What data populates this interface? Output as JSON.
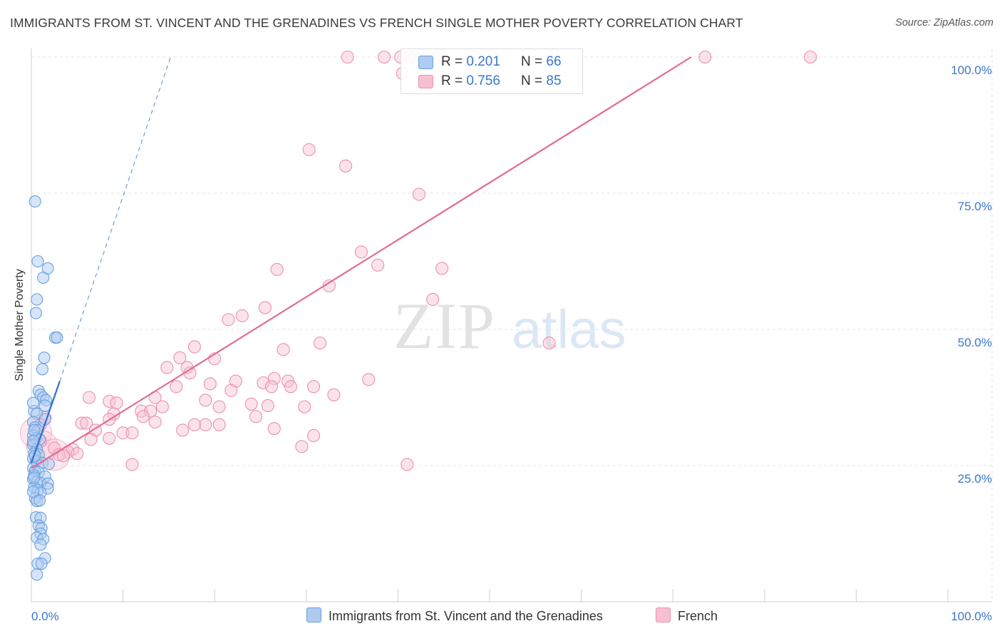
{
  "title": "IMMIGRANTS FROM ST. VINCENT AND THE GRENADINES VS FRENCH SINGLE MOTHER POVERTY CORRELATION CHART",
  "source": "Source: ZipAtlas.com",
  "watermark": {
    "part1": "ZIP",
    "part2": "atlas"
  },
  "legend_top": [
    {
      "r_label": "R = ",
      "r_value": "0.201",
      "n_label": "N = ",
      "n_value": "66"
    },
    {
      "r_label": "R = ",
      "r_value": "0.756",
      "n_label": "N = ",
      "n_value": "85"
    }
  ],
  "legend_bottom": [
    {
      "label": "Immigrants from St. Vincent and the Grenadines"
    },
    {
      "label": "French"
    }
  ],
  "colors": {
    "blue_fill": "#aecbf2",
    "blue_stroke": "#6a9fde",
    "blue_line": "#2f6fd0",
    "pink_fill": "#f7c0d2",
    "pink_stroke": "#ec8fae",
    "pink_line": "#e26a92",
    "axis_text": "#3b76c9",
    "grid": "#e3e3e3"
  },
  "chart_data": {
    "type": "scatter",
    "title": "IMMIGRANTS FROM ST. VINCENT AND THE GRENADINES VS FRENCH SINGLE MOTHER POVERTY CORRELATION CHART",
    "xlabel": "",
    "ylabel": "Single Mother Poverty",
    "xlim": [
      0,
      100
    ],
    "ylim": [
      0,
      100
    ],
    "x_tick_labels": [
      "0.0%",
      "100.0%"
    ],
    "y_ticks": [
      25,
      50,
      75,
      100
    ],
    "y_tick_labels": [
      "25.0%",
      "50.0%",
      "75.0%",
      "100.0%"
    ],
    "grid": true,
    "series": [
      {
        "name": "Immigrants from St. Vincent and the Grenadines",
        "color": "blue",
        "r": 0.201,
        "n": 66,
        "trend_solid": {
          "x": [
            0.0,
            3.1
          ],
          "y": [
            25.5,
            40.5
          ]
        },
        "trend_dashed": {
          "x": [
            3.1,
            15.2
          ],
          "y": [
            40.5,
            100
          ]
        },
        "points": [
          [
            0.4,
            73.5
          ],
          [
            0.7,
            62.5
          ],
          [
            1.3,
            59.5
          ],
          [
            1.8,
            61.2
          ],
          [
            0.6,
            55.5
          ],
          [
            0.5,
            53.0
          ],
          [
            2.6,
            48.5
          ],
          [
            2.8,
            48.5
          ],
          [
            1.4,
            44.8
          ],
          [
            1.2,
            42.7
          ],
          [
            0.8,
            38.7
          ],
          [
            1.0,
            38.0
          ],
          [
            1.3,
            37.5
          ],
          [
            1.6,
            37.0
          ],
          [
            1.5,
            36.0
          ],
          [
            0.3,
            35.0
          ],
          [
            0.6,
            34.5
          ],
          [
            0.2,
            33.0
          ],
          [
            1.5,
            33.5
          ],
          [
            0.4,
            32.0
          ],
          [
            0.7,
            31.5
          ],
          [
            0.2,
            30.5
          ],
          [
            0.5,
            30.0
          ],
          [
            0.9,
            29.8
          ],
          [
            0.2,
            28.8
          ],
          [
            0.6,
            28.0
          ],
          [
            0.3,
            27.2
          ],
          [
            0.8,
            27.0
          ],
          [
            0.2,
            26.3
          ],
          [
            0.5,
            25.8
          ],
          [
            1.2,
            25.5
          ],
          [
            1.9,
            25.3
          ],
          [
            0.2,
            24.5
          ],
          [
            0.4,
            24.0
          ],
          [
            0.8,
            23.8
          ],
          [
            0.3,
            23.2
          ],
          [
            1.5,
            23.0
          ],
          [
            0.2,
            22.5
          ],
          [
            0.6,
            22.0
          ],
          [
            1.0,
            21.8
          ],
          [
            1.8,
            21.7
          ],
          [
            0.3,
            21.0
          ],
          [
            0.7,
            20.5
          ],
          [
            1.8,
            20.8
          ],
          [
            1.0,
            20.0
          ],
          [
            0.4,
            19.0
          ],
          [
            0.6,
            18.5
          ],
          [
            0.9,
            18.6
          ],
          [
            0.5,
            15.5
          ],
          [
            1.0,
            15.4
          ],
          [
            0.8,
            14.0
          ],
          [
            1.1,
            13.5
          ],
          [
            1.0,
            12.5
          ],
          [
            0.6,
            11.8
          ],
          [
            1.3,
            11.5
          ],
          [
            1.0,
            10.5
          ],
          [
            1.5,
            8.0
          ],
          [
            0.7,
            7.0
          ],
          [
            1.1,
            7.0
          ],
          [
            0.6,
            5.0
          ],
          [
            0.2,
            36.5
          ],
          [
            0.3,
            31.5
          ],
          [
            0.2,
            29.5
          ],
          [
            0.4,
            26.8
          ],
          [
            0.3,
            22.8
          ],
          [
            0.2,
            20.2
          ]
        ]
      },
      {
        "name": "French",
        "color": "pink",
        "r": 0.756,
        "n": 85,
        "trend": {
          "x": [
            0.0,
            72.0
          ],
          "y": [
            24.5,
            100.0
          ]
        },
        "points": [
          [
            34.5,
            100
          ],
          [
            38.5,
            100
          ],
          [
            40.3,
            100
          ],
          [
            41.3,
            100
          ],
          [
            41.8,
            100
          ],
          [
            44.3,
            100
          ],
          [
            48.3,
            100
          ],
          [
            73.5,
            100
          ],
          [
            85.0,
            100
          ],
          [
            40.5,
            97.0
          ],
          [
            30.3,
            83.0
          ],
          [
            34.3,
            80.0
          ],
          [
            42.3,
            74.8
          ],
          [
            36.0,
            64.2
          ],
          [
            37.8,
            61.8
          ],
          [
            44.8,
            61.2
          ],
          [
            26.8,
            61.0
          ],
          [
            32.5,
            58.0
          ],
          [
            43.8,
            55.5
          ],
          [
            25.5,
            54.0
          ],
          [
            23.0,
            52.5
          ],
          [
            21.5,
            51.8
          ],
          [
            56.5,
            47.5
          ],
          [
            31.5,
            47.5
          ],
          [
            17.8,
            46.8
          ],
          [
            27.5,
            46.3
          ],
          [
            16.2,
            44.8
          ],
          [
            20.0,
            44.6
          ],
          [
            14.8,
            43.0
          ],
          [
            17.0,
            43.0
          ],
          [
            17.3,
            42.0
          ],
          [
            26.5,
            41.0
          ],
          [
            22.3,
            40.5
          ],
          [
            25.3,
            40.2
          ],
          [
            28.0,
            40.5
          ],
          [
            19.5,
            40.0
          ],
          [
            15.8,
            39.5
          ],
          [
            28.3,
            39.5
          ],
          [
            30.8,
            39.5
          ],
          [
            26.2,
            39.5
          ],
          [
            21.8,
            38.8
          ],
          [
            36.8,
            40.8
          ],
          [
            33.0,
            38.0
          ],
          [
            6.3,
            37.5
          ],
          [
            13.5,
            37.5
          ],
          [
            8.5,
            36.8
          ],
          [
            19.0,
            37.0
          ],
          [
            9.3,
            36.5
          ],
          [
            14.3,
            35.8
          ],
          [
            20.5,
            35.8
          ],
          [
            25.8,
            36.0
          ],
          [
            29.8,
            35.8
          ],
          [
            24.0,
            36.3
          ],
          [
            12.0,
            35.0
          ],
          [
            13.0,
            35.0
          ],
          [
            9.0,
            34.5
          ],
          [
            12.2,
            34.0
          ],
          [
            24.5,
            34.0
          ],
          [
            1.5,
            33.8
          ],
          [
            8.5,
            33.5
          ],
          [
            5.5,
            32.8
          ],
          [
            6.0,
            32.8
          ],
          [
            13.5,
            33.0
          ],
          [
            19.0,
            32.5
          ],
          [
            17.8,
            32.5
          ],
          [
            20.5,
            32.5
          ],
          [
            7.0,
            31.5
          ],
          [
            10.0,
            31.0
          ],
          [
            11.0,
            31.0
          ],
          [
            16.5,
            31.5
          ],
          [
            26.5,
            31.8
          ],
          [
            30.8,
            30.5
          ],
          [
            8.5,
            30.0
          ],
          [
            6.5,
            29.8
          ],
          [
            2.5,
            28.2
          ],
          [
            29.5,
            28.5
          ],
          [
            4.5,
            28.0
          ],
          [
            1.0,
            29.5
          ],
          [
            4.0,
            27.5
          ],
          [
            3.0,
            27.0
          ],
          [
            5.0,
            27.2
          ],
          [
            3.5,
            26.8
          ],
          [
            11.0,
            25.2
          ],
          [
            41.0,
            25.2
          ],
          [
            1.0,
            32.5
          ]
        ],
        "big_points": [
          [
            0.5,
            31.0
          ],
          [
            1.2,
            28.5
          ],
          [
            2.5,
            27.0
          ]
        ]
      }
    ]
  }
}
